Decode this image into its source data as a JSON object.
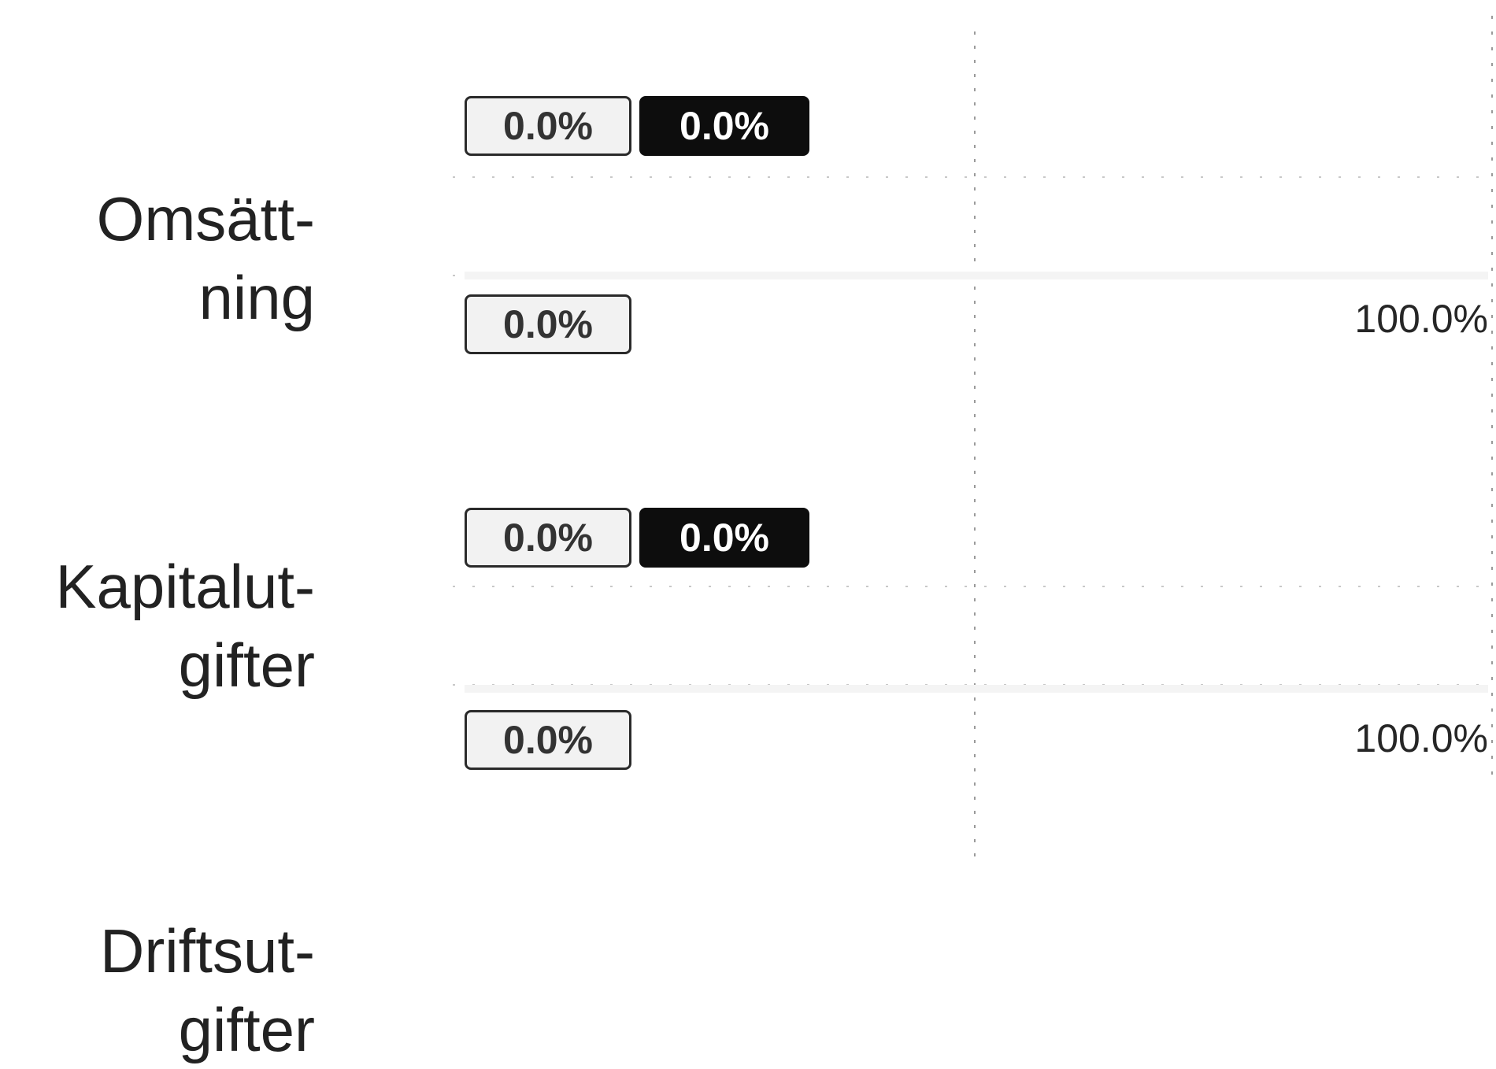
{
  "chart_data": {
    "type": "bar",
    "orientation": "horizontal",
    "categories": [
      "Omsätt-\nning",
      "Kapitalut-\ngifter",
      "Driftsut-\ngifter"
    ],
    "series": [
      {
        "values": [
          0.0,
          0.0,
          null
        ]
      },
      {
        "values": [
          0.0,
          0.0,
          null
        ]
      },
      {
        "values": [
          0.0,
          0.0,
          null
        ]
      },
      {
        "values": [
          100.0,
          100.0,
          null
        ]
      }
    ],
    "labels": {
      "rows": [
        {
          "badge_light_top": "0.0%",
          "badge_dark_top": "0.0%",
          "badge_light_bottom": "0.0%",
          "end_label": "100.0%"
        },
        {
          "badge_light_top": "0.0%",
          "badge_dark_top": "0.0%",
          "badge_light_bottom": "0.0%",
          "end_label": "100.0%"
        }
      ]
    },
    "title": "",
    "xlabel": "",
    "ylabel": "",
    "xlim": [
      0,
      100
    ],
    "grid": false,
    "legend": "none",
    "colors": {
      "light_badge": "#f2f2f2",
      "dark_badge": "#0d0d0d",
      "axis": "#9a9a9a",
      "text": "#222222"
    }
  }
}
